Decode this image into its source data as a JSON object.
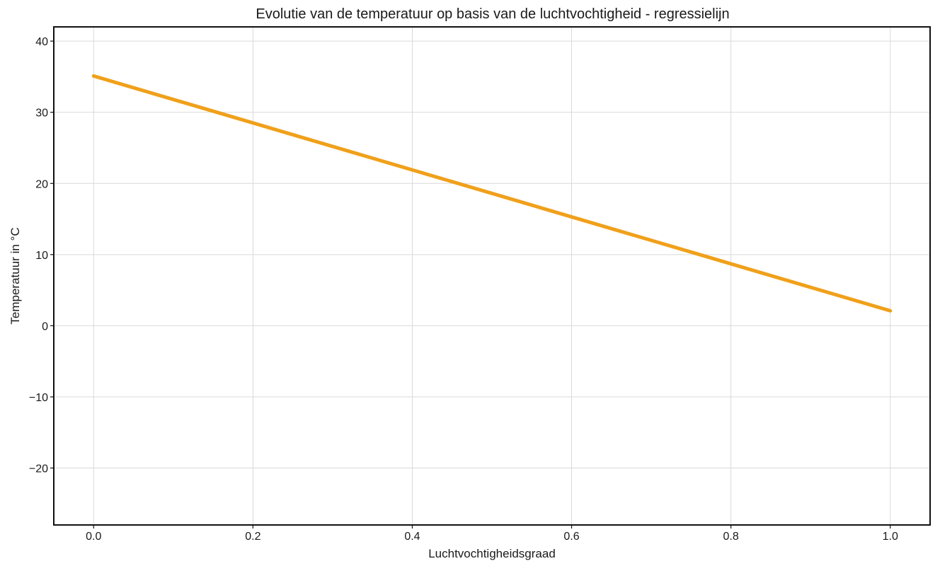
{
  "chart_data": {
    "type": "line",
    "title": "Evolutie van de temperatuur op basis van de luchtvochtigheid - regressielijn",
    "xlabel": "Luchtvochtigheidsgraad",
    "ylabel": "Temperatuur in °C",
    "xlim": [
      -0.05,
      1.05
    ],
    "ylim": [
      -28,
      42
    ],
    "xticks": [
      0.0,
      0.2,
      0.4,
      0.6,
      0.8,
      1.0
    ],
    "xtick_labels": [
      "0.0",
      "0.2",
      "0.4",
      "0.6",
      "0.8",
      "1.0"
    ],
    "yticks": [
      -20,
      -10,
      0,
      10,
      20,
      30,
      40
    ],
    "ytick_labels": [
      "−20",
      "−10",
      "0",
      "10",
      "20",
      "30",
      "40"
    ],
    "grid": true,
    "legend": "none",
    "series": [
      {
        "x": [
          0.0,
          1.0
        ],
        "y": [
          35.1,
          2.1
        ],
        "color": "#f0a01a"
      }
    ]
  }
}
